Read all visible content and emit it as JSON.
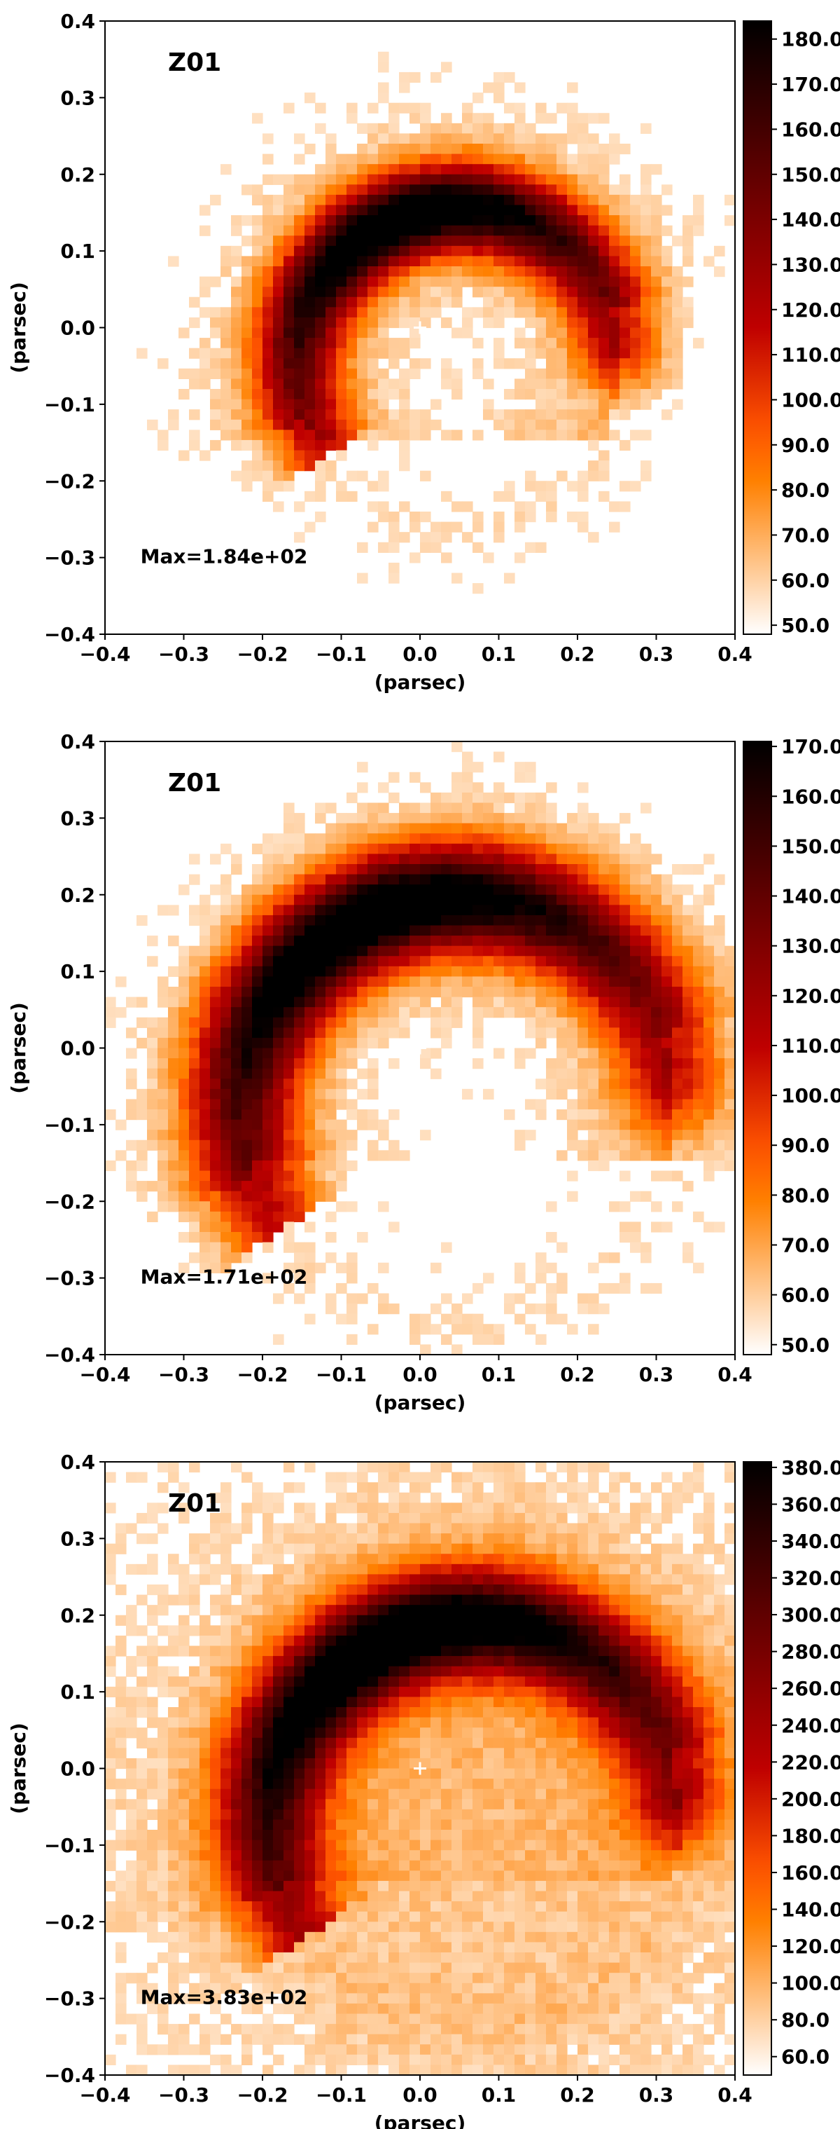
{
  "chart_data": [
    {
      "type": "heatmap",
      "panel_label": "Z01",
      "annotation": "Max=1.84e+02",
      "xlabel": "(parsec)",
      "ylabel": "(parsec)",
      "xlim": [
        -0.4,
        0.4
      ],
      "ylim": [
        -0.4,
        0.4
      ],
      "xticks": [
        -0.4,
        -0.3,
        -0.2,
        -0.1,
        0.0,
        0.1,
        0.2,
        0.3,
        0.4
      ],
      "yticks": [
        -0.4,
        -0.3,
        -0.2,
        -0.1,
        0.0,
        0.1,
        0.2,
        0.3,
        0.4
      ],
      "colorbar": {
        "min": 48,
        "max": 184,
        "ticks": [
          "50.0",
          "60.0",
          "70.0",
          "80.0",
          "90.0",
          "100.0",
          "110.0",
          "120.0",
          "130.0",
          "140.0",
          "150.0",
          "160.0",
          "170.0",
          "180.0"
        ],
        "colormap": "gist_heat_r"
      },
      "marker": {
        "x": 0.0,
        "y": 0.0,
        "symbol": "+",
        "color": "#ffffff"
      },
      "arc": {
        "center_x": 0.05,
        "center_y": -0.05,
        "radius": 0.205,
        "width": 0.055,
        "peak_angle_deg": 110
      }
    },
    {
      "type": "heatmap",
      "panel_label": "Z01",
      "annotation": "Max=1.71e+02",
      "xlabel": "(parsec)",
      "ylabel": "(parsec)",
      "xlim": [
        -0.4,
        0.4
      ],
      "ylim": [
        -0.4,
        0.4
      ],
      "xticks": [
        -0.4,
        -0.3,
        -0.2,
        -0.1,
        0.0,
        0.1,
        0.2,
        0.3,
        0.4
      ],
      "yticks": [
        -0.4,
        -0.3,
        -0.2,
        -0.1,
        0.0,
        0.1,
        0.2,
        0.3,
        0.4
      ],
      "colorbar": {
        "min": 48,
        "max": 171,
        "ticks": [
          "50.0",
          "60.0",
          "70.0",
          "80.0",
          "90.0",
          "100.0",
          "110.0",
          "120.0",
          "130.0",
          "140.0",
          "150.0",
          "160.0",
          "170.0"
        ],
        "colormap": "gist_heat_r"
      },
      "marker": {
        "x": 0.0,
        "y": 0.0,
        "symbol": "+",
        "color": "#ffffff"
      },
      "arc": {
        "center_x": 0.05,
        "center_y": -0.08,
        "radius": 0.275,
        "width": 0.07,
        "peak_angle_deg": 115
      }
    },
    {
      "type": "heatmap",
      "panel_label": "Z01",
      "annotation": "Max=3.83e+02",
      "xlabel": "(parsec)",
      "ylabel": "(parsec)",
      "xlim": [
        -0.4,
        0.4
      ],
      "ylim": [
        -0.4,
        0.4
      ],
      "xticks": [
        -0.4,
        -0.3,
        -0.2,
        -0.1,
        0.0,
        0.1,
        0.2,
        0.3,
        0.4
      ],
      "yticks": [
        -0.4,
        -0.3,
        -0.2,
        -0.1,
        0.0,
        0.1,
        0.2,
        0.3,
        0.4
      ],
      "colorbar": {
        "min": 50,
        "max": 383,
        "ticks": [
          "60.0",
          "80.0",
          "100.0",
          "120.0",
          "140.0",
          "160.0",
          "180.0",
          "200.0",
          "220.0",
          "240.0",
          "260.0",
          "280.0",
          "300.0",
          "320.0",
          "340.0",
          "360.0",
          "380.0"
        ],
        "colormap": "gist_heat_r"
      },
      "marker": {
        "x": 0.0,
        "y": 0.0,
        "symbol": "+",
        "color": "#ffffff"
      },
      "arc": {
        "center_x": 0.07,
        "center_y": -0.07,
        "radius": 0.26,
        "width": 0.065,
        "peak_angle_deg": 115
      }
    }
  ]
}
